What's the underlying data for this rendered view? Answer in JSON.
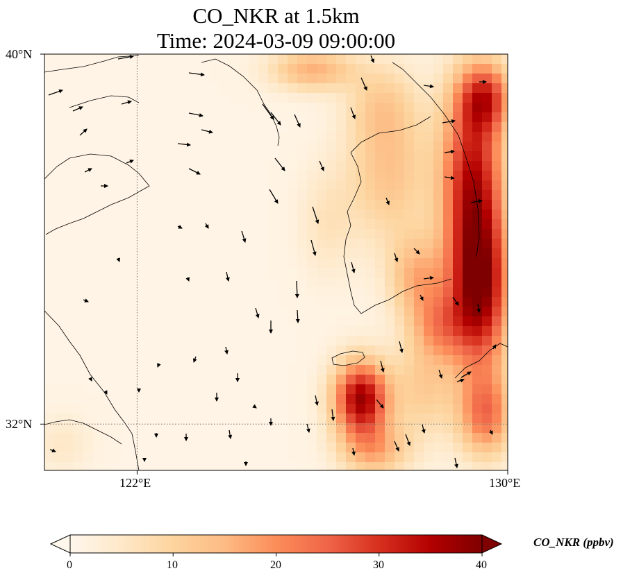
{
  "title": {
    "line1": "CO_NKR at 1.5km",
    "line2": "Time: 2024-03-09 09:00:00"
  },
  "map": {
    "lon_range": [
      119,
      130
    ],
    "lat_range": [
      31,
      40
    ],
    "gridlines": {
      "lon": [
        122
      ],
      "lat": [
        32
      ],
      "style": "dotted"
    },
    "lon_labels": [
      {
        "value": 122,
        "text": "122°E"
      },
      {
        "value": 130,
        "text": "130°E"
      }
    ],
    "lat_labels": [
      {
        "value": 40,
        "text": "40°N"
      },
      {
        "value": 32,
        "text": "32°N"
      }
    ],
    "overlays": [
      "coastlines",
      "wind-vectors"
    ],
    "field": "CO_NKR concentration",
    "hotspots_note_excluded": true
  },
  "colorbar": {
    "title": "CO_NKR (ppbv)",
    "min": 0,
    "max": 40,
    "extend": "both",
    "ticks": [
      {
        "value": 0,
        "text": "0"
      },
      {
        "value": 10,
        "text": "10"
      },
      {
        "value": 20,
        "text": "20"
      },
      {
        "value": 30,
        "text": "30"
      },
      {
        "value": 40,
        "text": "40"
      }
    ],
    "colors": [
      "#fff5eb",
      "#fee6ce",
      "#fdd0a2",
      "#fdae6b",
      "#fd8d3c",
      "#f16913",
      "#d94801",
      "#a63603",
      "#7f2704"
    ],
    "colormap": "OrRd",
    "colormap_colors": [
      "#fff7ec",
      "#fee8c8",
      "#fdd49e",
      "#fdbb84",
      "#fc8d59",
      "#ef6548",
      "#d7301f",
      "#b30000",
      "#7f0000"
    ]
  }
}
